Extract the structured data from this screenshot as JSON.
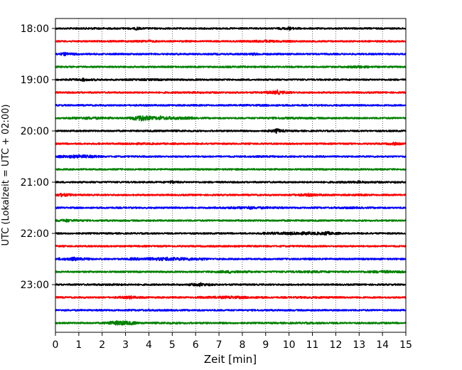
{
  "chart_data": {
    "type": "line",
    "subtype": "helicorder",
    "xlabel": "Zeit  [min]",
    "ylabel": "UTC (Lokalzeit = UTC + 02:00)",
    "xlim": [
      0,
      15
    ],
    "x_ticks": [
      "0",
      "1",
      "2",
      "3",
      "4",
      "5",
      "6",
      "7",
      "8",
      "9",
      "10",
      "11",
      "12",
      "13",
      "14",
      "15"
    ],
    "y_ticks": [
      "18:00",
      "19:00",
      "20:00",
      "21:00",
      "22:00",
      "23:00"
    ],
    "grid": "vertical dotted",
    "color_cycle": [
      "#000000",
      "#ff0000",
      "#0000ff",
      "#008000"
    ],
    "rows": [
      {
        "start": "18:00",
        "color": "#000000",
        "events": [
          [
            3.5,
            1.2,
            5.0,
            2.5
          ],
          [
            10.0,
            1.8,
            0.6,
            2.5
          ],
          [
            1.5,
            1.4,
            1.0,
            1.0
          ]
        ]
      },
      {
        "start": "18:15",
        "color": "#ff0000",
        "events": [
          [
            4.0,
            1.3,
            3.0,
            2.0
          ],
          [
            9.0,
            1.5,
            2.0,
            2.0
          ]
        ]
      },
      {
        "start": "18:30",
        "color": "#0000ff",
        "events": [
          [
            0.4,
            1.8,
            0.8,
            2.5
          ],
          [
            8.5,
            1.3,
            3.0,
            2.0
          ]
        ]
      },
      {
        "start": "18:45",
        "color": "#008000",
        "events": [
          [
            13.0,
            1.8,
            0.6,
            2.5
          ],
          [
            8.0,
            1.2,
            4.0,
            1.5
          ]
        ]
      },
      {
        "start": "19:00",
        "color": "#000000",
        "events": [
          [
            1.2,
            1.6,
            1.0,
            2.5
          ],
          [
            4.0,
            1.3,
            4.0,
            1.5
          ]
        ]
      },
      {
        "start": "19:15",
        "color": "#ff0000",
        "events": [
          [
            9.5,
            2.2,
            0.8,
            3.5
          ],
          [
            6.0,
            1.2,
            5.0,
            1.5
          ]
        ]
      },
      {
        "start": "19:30",
        "color": "#0000ff",
        "events": [
          [
            9.0,
            1.2,
            6.0,
            1.5
          ]
        ]
      },
      {
        "start": "19:45",
        "color": "#008000",
        "events": [
          [
            3.7,
            3.5,
            0.6,
            5.0
          ],
          [
            4.5,
            2.2,
            2.5,
            3.0
          ],
          [
            1.5,
            1.8,
            1.5,
            2.0
          ],
          [
            10.0,
            1.3,
            5.0,
            1.5
          ]
        ]
      },
      {
        "start": "20:00",
        "color": "#000000",
        "events": [
          [
            9.5,
            2.0,
            0.5,
            3.5
          ],
          [
            5.0,
            1.2,
            5.0,
            1.5
          ]
        ]
      },
      {
        "start": "20:15",
        "color": "#ff0000",
        "events": [
          [
            3.5,
            1.3,
            3.0,
            1.5
          ],
          [
            14.5,
            1.8,
            0.3,
            2.5
          ]
        ]
      },
      {
        "start": "20:30",
        "color": "#0000ff",
        "events": [
          [
            1.0,
            2.2,
            1.5,
            3.0
          ],
          [
            9.0,
            1.2,
            5.0,
            1.2
          ]
        ]
      },
      {
        "start": "20:45",
        "color": "#008000",
        "events": [
          [
            8.0,
            1.1,
            6.0,
            1.2
          ]
        ]
      },
      {
        "start": "21:00",
        "color": "#000000",
        "events": [
          [
            5.0,
            1.5,
            0.3,
            2.5
          ],
          [
            13.0,
            1.4,
            3.0,
            2.0
          ]
        ]
      },
      {
        "start": "21:15",
        "color": "#ff0000",
        "events": [
          [
            0.3,
            2.2,
            0.5,
            3.0
          ],
          [
            10.8,
            1.8,
            1.2,
            2.5
          ],
          [
            13.0,
            1.3,
            2.0,
            1.5
          ]
        ]
      },
      {
        "start": "21:30",
        "color": "#0000ff",
        "events": [
          [
            8.3,
            1.7,
            2.5,
            2.5
          ],
          [
            12.5,
            1.3,
            2.5,
            1.5
          ]
        ]
      },
      {
        "start": "21:45",
        "color": "#008000",
        "events": [
          [
            0.5,
            1.8,
            1.0,
            2.5
          ],
          [
            10.0,
            1.1,
            4.0,
            1.2
          ]
        ]
      },
      {
        "start": "22:00",
        "color": "#000000",
        "events": [
          [
            10.5,
            2.0,
            3.0,
            2.5
          ],
          [
            11.6,
            2.2,
            0.5,
            3.5
          ]
        ]
      },
      {
        "start": "22:15",
        "color": "#ff0000",
        "events": [
          [
            8.0,
            1.1,
            6.0,
            1.2
          ]
        ]
      },
      {
        "start": "22:30",
        "color": "#0000ff",
        "events": [
          [
            0.8,
            2.0,
            1.2,
            3.0
          ],
          [
            4.8,
            2.2,
            3.0,
            3.0
          ],
          [
            11.0,
            1.2,
            4.0,
            1.5
          ]
        ]
      },
      {
        "start": "22:45",
        "color": "#008000",
        "events": [
          [
            7.5,
            1.8,
            1.5,
            2.5
          ],
          [
            11.0,
            1.5,
            3.0,
            2.0
          ],
          [
            14.0,
            1.8,
            1.5,
            2.0
          ]
        ]
      },
      {
        "start": "23:00",
        "color": "#000000",
        "events": [
          [
            6.2,
            2.0,
            0.7,
            3.0
          ],
          [
            2.5,
            1.3,
            3.0,
            1.5
          ]
        ]
      },
      {
        "start": "23:15",
        "color": "#ff0000",
        "events": [
          [
            3.2,
            1.8,
            0.8,
            2.5
          ],
          [
            7.5,
            1.8,
            2.5,
            2.5
          ],
          [
            11.0,
            1.3,
            4.0,
            1.5
          ]
        ]
      },
      {
        "start": "23:30",
        "color": "#0000ff",
        "events": [
          [
            4.0,
            1.2,
            4.0,
            1.5
          ]
        ]
      },
      {
        "start": "23:45",
        "color": "#008000",
        "events": [
          [
            2.8,
            3.0,
            1.0,
            3.5
          ],
          [
            5.0,
            1.3,
            4.0,
            1.5
          ],
          [
            11.0,
            1.2,
            6.0,
            1.2
          ]
        ]
      }
    ]
  }
}
